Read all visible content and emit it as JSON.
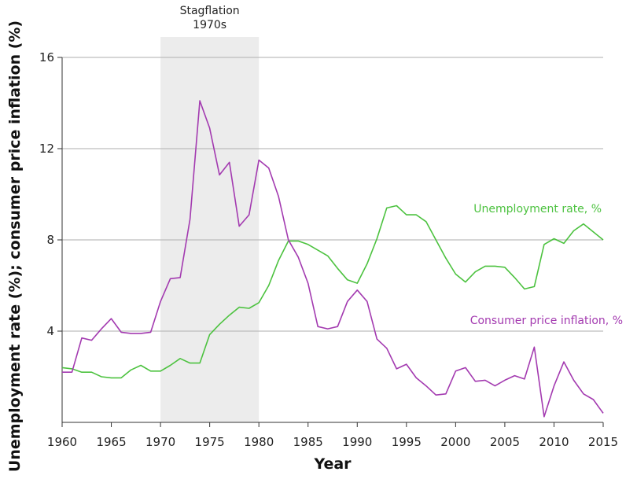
{
  "chart_data": {
    "type": "line",
    "xlabel": "Year",
    "ylabel": "Unemployment rate (%); consumer price inflation (%)",
    "xlim": [
      1960,
      2015
    ],
    "ylim": [
      0,
      16
    ],
    "x_ticks": [
      1960,
      1965,
      1970,
      1975,
      1980,
      1985,
      1990,
      1995,
      2000,
      2005,
      2010,
      2015
    ],
    "y_ticks": [
      4,
      8,
      12,
      16
    ],
    "grid": "horizontal",
    "shaded_region": {
      "from": 1970,
      "to": 1980,
      "label_line1": "Stagflation",
      "label_line2": "1970s",
      "color": "#ececec"
    },
    "series": [
      {
        "name": "Unemployment rate, %",
        "color": "#4cc23f",
        "x": [
          1960,
          1961,
          1962,
          1963,
          1964,
          1965,
          1966,
          1967,
          1968,
          1969,
          1970,
          1971,
          1972,
          1973,
          1974,
          1975,
          1976,
          1977,
          1978,
          1979,
          1980,
          1981,
          1982,
          1983,
          1984,
          1985,
          1986,
          1987,
          1988,
          1989,
          1990,
          1991,
          1992,
          1993,
          1994,
          1995,
          1996,
          1997,
          1998,
          1999,
          2000,
          2001,
          2002,
          2003,
          2004,
          2005,
          2006,
          2007,
          2008,
          2009,
          2010,
          2011,
          2012,
          2013,
          2014,
          2015
        ],
        "values": [
          2.4,
          2.35,
          2.2,
          2.2,
          2.0,
          1.95,
          1.95,
          2.3,
          2.5,
          2.25,
          2.25,
          2.5,
          2.8,
          2.6,
          2.6,
          3.85,
          4.3,
          4.7,
          5.05,
          5.0,
          5.25,
          6.0,
          7.1,
          7.95,
          7.95,
          7.8,
          7.55,
          7.3,
          6.75,
          6.25,
          6.1,
          6.95,
          8.05,
          9.4,
          9.5,
          9.1,
          9.1,
          8.8,
          8.0,
          7.2,
          6.5,
          6.15,
          6.6,
          6.85,
          6.85,
          6.8,
          6.35,
          5.85,
          5.95,
          7.8,
          8.05,
          7.85,
          8.4,
          8.7,
          8.35,
          8.0
        ]
      },
      {
        "name": "Consumer price inflation, %",
        "color": "#a33ab0",
        "x": [
          1960,
          1961,
          1962,
          1963,
          1964,
          1965,
          1966,
          1967,
          1968,
          1969,
          1970,
          1971,
          1972,
          1973,
          1974,
          1975,
          1976,
          1977,
          1978,
          1979,
          1980,
          1981,
          1982,
          1983,
          1984,
          1985,
          1986,
          1987,
          1988,
          1989,
          1990,
          1991,
          1992,
          1993,
          1994,
          1995,
          1996,
          1997,
          1998,
          1999,
          2000,
          2001,
          2002,
          2003,
          2004,
          2005,
          2006,
          2007,
          2008,
          2009,
          2010,
          2011,
          2012,
          2013,
          2014,
          2015
        ],
        "values": [
          2.2,
          2.2,
          3.7,
          3.6,
          4.1,
          4.55,
          3.95,
          3.9,
          3.9,
          3.95,
          5.3,
          6.3,
          6.35,
          8.9,
          14.1,
          12.9,
          10.85,
          11.4,
          8.6,
          9.1,
          11.5,
          11.15,
          9.9,
          8.0,
          7.25,
          6.1,
          4.2,
          4.1,
          4.2,
          5.3,
          5.8,
          5.3,
          3.65,
          3.25,
          2.35,
          2.55,
          1.95,
          1.6,
          1.2,
          1.25,
          2.25,
          2.4,
          1.8,
          1.85,
          1.6,
          1.85,
          2.05,
          1.9,
          3.3,
          0.25,
          1.6,
          2.65,
          1.85,
          1.25,
          1.0,
          0.4
        ]
      }
    ]
  }
}
